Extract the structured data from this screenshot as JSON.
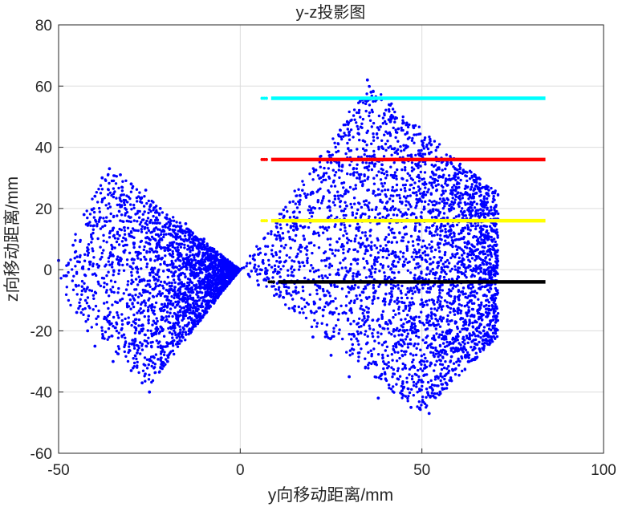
{
  "chart_data": {
    "type": "scatter",
    "title": "y-z投影图",
    "xlabel": "y向移动距离/mm",
    "ylabel": "z向移动距离/mm",
    "xlim": [
      -50,
      100
    ],
    "ylim": [
      -60,
      80
    ],
    "xticks": [
      -50,
      0,
      50,
      100
    ],
    "yticks": [
      -60,
      -40,
      -20,
      0,
      20,
      40,
      60,
      80
    ],
    "grid": true,
    "legend": "none",
    "series": [
      {
        "color": "#0000ff",
        "kind": "scatter-cloud",
        "shape": "double cone through origin",
        "points": [
          [
            -50,
            3
          ],
          [
            -48,
            -2
          ],
          [
            -46,
            8
          ],
          [
            -45,
            -14
          ],
          [
            -43,
            18
          ],
          [
            -42,
            -20
          ],
          [
            -40,
            24
          ],
          [
            -40,
            -25
          ],
          [
            -38,
            30
          ],
          [
            -36,
            33
          ],
          [
            -35,
            -30
          ],
          [
            -33,
            31
          ],
          [
            -30,
            28
          ],
          [
            -30,
            -33
          ],
          [
            -27,
            -37
          ],
          [
            -26,
            26
          ],
          [
            -25,
            -40
          ],
          [
            -22,
            20
          ],
          [
            -20,
            -30
          ],
          [
            -15,
            15
          ],
          [
            -15,
            -15
          ],
          [
            -10,
            10
          ],
          [
            -10,
            -10
          ],
          [
            -5,
            3
          ],
          [
            -5,
            -3
          ],
          [
            0,
            0
          ],
          [
            5,
            5
          ],
          [
            5,
            -5
          ],
          [
            10,
            10
          ],
          [
            10,
            -8
          ],
          [
            15,
            15
          ],
          [
            15,
            -12
          ],
          [
            20,
            25
          ],
          [
            20,
            -22
          ],
          [
            25,
            35
          ],
          [
            25,
            -28
          ],
          [
            30,
            45
          ],
          [
            30,
            -35
          ],
          [
            33,
            55
          ],
          [
            35,
            62
          ],
          [
            36,
            58
          ],
          [
            38,
            -42
          ],
          [
            42,
            50
          ],
          [
            45,
            48
          ],
          [
            47,
            -45
          ],
          [
            50,
            42
          ],
          [
            52,
            -47
          ],
          [
            55,
            -40
          ],
          [
            58,
            35
          ],
          [
            60,
            30
          ],
          [
            62,
            -28
          ],
          [
            65,
            25
          ],
          [
            67,
            -20
          ],
          [
            69,
            5
          ],
          [
            70,
            -10
          ],
          [
            70,
            8
          ]
        ]
      },
      {
        "color": "#00ffff",
        "kind": "line",
        "x": [
          6,
          84
        ],
        "z": 56
      },
      {
        "color": "#ff0000",
        "kind": "line",
        "x": [
          6,
          84
        ],
        "z": 36
      },
      {
        "color": "#ffff00",
        "kind": "line",
        "x": [
          6,
          84
        ],
        "z": 16
      },
      {
        "color": "#000000",
        "kind": "line",
        "x": [
          8,
          84
        ],
        "z": -4
      }
    ]
  }
}
